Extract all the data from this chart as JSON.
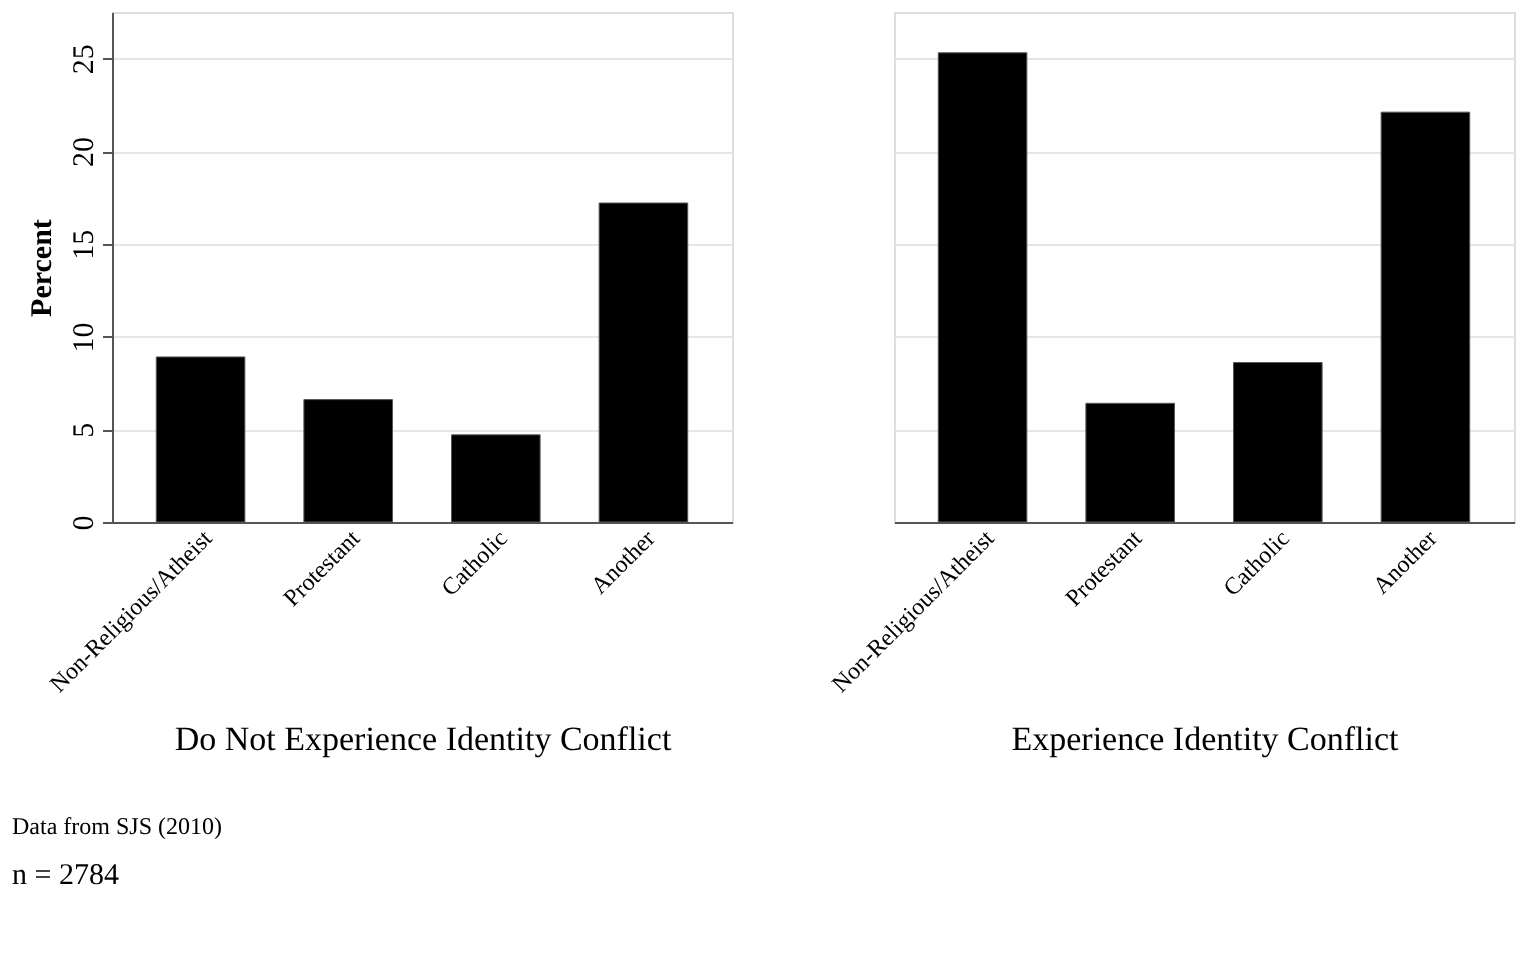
{
  "chart_data": [
    {
      "type": "bar",
      "categories": [
        "Non-Religious/Atheist",
        "Protestant",
        "Catholic",
        "Another"
      ],
      "values": [
        8.9,
        6.6,
        4.7,
        17.2
      ],
      "color": "#000000",
      "ylim": [
        0,
        27.5
      ],
      "yticks": [
        0,
        5,
        10,
        15,
        20,
        25
      ],
      "grid": "y",
      "ylabel": "Percent",
      "xlabel": "Do Not Experience Identity Conflict",
      "annotations": [
        "Data from SJS (2010)",
        "n = 2784"
      ]
    },
    {
      "type": "bar",
      "categories": [
        "Non-Religious/Atheist",
        "Protestant",
        "Catholic",
        "Another"
      ],
      "values": [
        25.3,
        6.4,
        8.6,
        22.1
      ],
      "color": "#000000",
      "ylim": [
        0,
        27.5
      ],
      "yticks": [
        0,
        5,
        10,
        15,
        20,
        25
      ],
      "grid": "y",
      "tick_labels": "x",
      "xlabel": "Experience Identity Conflict"
    }
  ]
}
